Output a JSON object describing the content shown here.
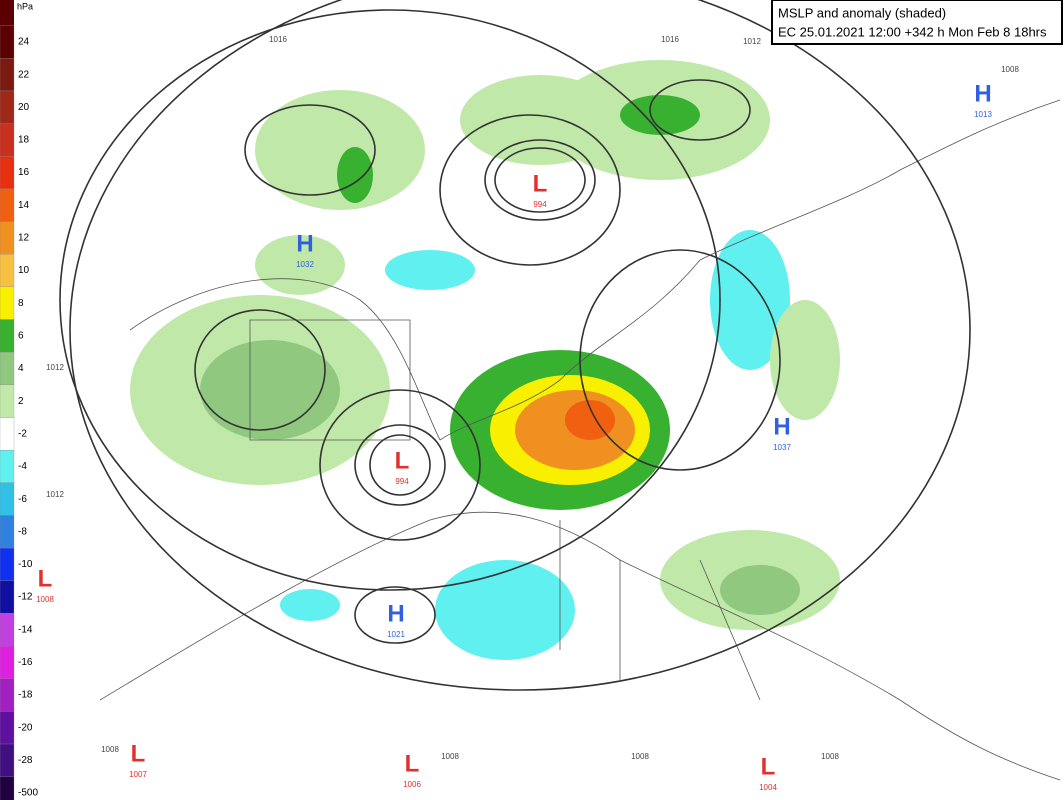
{
  "header": {
    "title": "MSLP and anomaly (shaded)",
    "subtitle": "EC 25.01.2021 12:00 +342 h Mon Feb 8 18hrs"
  },
  "legend": {
    "unit": "hPa",
    "labels": [
      24,
      22,
      20,
      18,
      16,
      14,
      12,
      10,
      8,
      6,
      4,
      2,
      -2,
      -4,
      -6,
      -8,
      -10,
      -12,
      -14,
      -16,
      -18,
      -20,
      -28,
      -500
    ],
    "colors": [
      "#5a0000",
      "#7a1a10",
      "#a02818",
      "#c83020",
      "#e83010",
      "#f06010",
      "#f09020",
      "#f8c040",
      "#f8f000",
      "#38b030",
      "#90c880",
      "#c0e8a8",
      "#ffffff",
      "#60f0f0",
      "#30c0e8",
      "#3080e0",
      "#1030f0",
      "#1010a0",
      "#c040e0",
      "#e020e0",
      "#a020c0",
      "#6010a0",
      "#401080",
      "#200040"
    ]
  },
  "centers": [
    {
      "letter": "H",
      "value": 1032,
      "color": "#3060e0"
    },
    {
      "letter": "L",
      "value": 994,
      "color": "#e03030"
    },
    {
      "letter": "H",
      "value": 1013,
      "color": "#3060e0"
    },
    {
      "letter": "L",
      "value": 994,
      "color": "#e03030"
    },
    {
      "letter": "H",
      "value": 1037,
      "color": "#3060e0"
    },
    {
      "letter": "L",
      "value": 1008,
      "color": "#e03030"
    },
    {
      "letter": "H",
      "value": 1021,
      "color": "#3060e0"
    },
    {
      "letter": "L",
      "value": 1007,
      "color": "#e03030"
    },
    {
      "letter": "L",
      "value": 1006,
      "color": "#e03030"
    },
    {
      "letter": "L",
      "value": 1004,
      "color": "#e03030"
    }
  ],
  "isobar_labels": [
    1016,
    1016,
    1012,
    1012,
    1012,
    1008,
    1008,
    1008,
    1008,
    1008
  ]
}
